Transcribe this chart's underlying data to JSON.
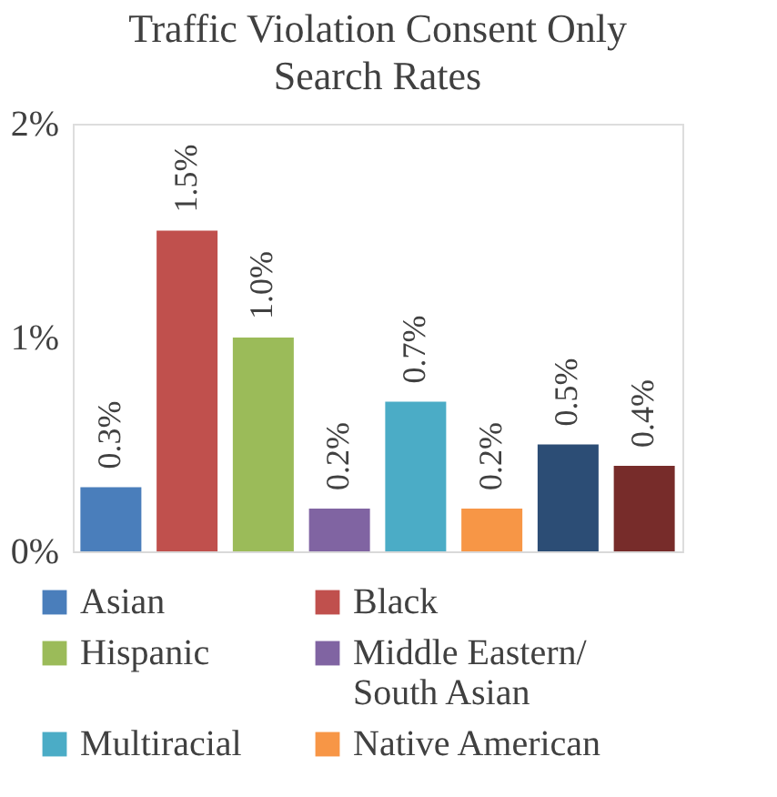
{
  "chart_data": {
    "type": "bar",
    "title": "Traffic Violation Consent Only Search Rates",
    "categories": [
      null,
      null,
      null,
      null,
      null,
      null,
      null,
      null
    ],
    "stacked": true,
    "series": [
      {
        "name": "Asian",
        "color": "#4a7ebb",
        "values": [
          0.3,
          null,
          null,
          null,
          null,
          null,
          null,
          null
        ],
        "value_labels": [
          "0.3%",
          null,
          null,
          null,
          null,
          null,
          null,
          null
        ]
      },
      {
        "name": "Black",
        "color": "#c0504d",
        "values": [
          null,
          1.5,
          null,
          null,
          null,
          null,
          null,
          null
        ],
        "value_labels": [
          null,
          "1.5%",
          null,
          null,
          null,
          null,
          null,
          null
        ]
      },
      {
        "name": "Hispanic",
        "color": "#9bbb59",
        "values": [
          null,
          null,
          1.0,
          null,
          null,
          null,
          null,
          null
        ],
        "value_labels": [
          null,
          null,
          "1.0%",
          null,
          null,
          null,
          null,
          null
        ]
      },
      {
        "name": "Middle Eastern/South Asian",
        "color": "#8064a2",
        "values": [
          null,
          null,
          null,
          0.2,
          null,
          null,
          null,
          null
        ],
        "value_labels": [
          null,
          null,
          null,
          "0.2%",
          null,
          null,
          null,
          null
        ]
      },
      {
        "name": "Multiracial",
        "color": "#4bacc6",
        "values": [
          null,
          null,
          null,
          null,
          0.7,
          null,
          null,
          null
        ],
        "value_labels": [
          null,
          null,
          null,
          null,
          "0.7%",
          null,
          null,
          null
        ]
      },
      {
        "name": "Native American",
        "color": "#f79646",
        "values": [
          null,
          null,
          null,
          null,
          null,
          0.2,
          null,
          null
        ],
        "value_labels": [
          null,
          null,
          null,
          null,
          null,
          "0.2%",
          null,
          null
        ]
      },
      {
        "color": "#2c4d75",
        "values": [
          null,
          null,
          null,
          null,
          null,
          null,
          0.5,
          null
        ],
        "value_labels": [
          null,
          null,
          null,
          null,
          null,
          null,
          "0.5%",
          null
        ]
      },
      {
        "color": "#772c2a",
        "values": [
          null,
          null,
          null,
          null,
          null,
          null,
          null,
          0.4
        ],
        "value_labels": [
          null,
          null,
          null,
          null,
          null,
          null,
          null,
          "0.4%"
        ]
      }
    ],
    "ylim": [
      0,
      2
    ],
    "yticks": [
      {
        "value": 0,
        "label": "0%"
      },
      {
        "value": 1,
        "label": "1%"
      },
      {
        "value": 2,
        "label": "2%"
      }
    ],
    "grid": false,
    "legend": "bottom",
    "tick_labels": "y"
  }
}
